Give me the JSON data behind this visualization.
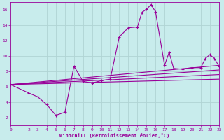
{
  "xlabel": "Windchill (Refroidissement éolien,°C)",
  "background_color": "#c8ecec",
  "line_color": "#990099",
  "grid_color": "#b0d4d4",
  "xlim": [
    0,
    23
  ],
  "ylim": [
    1,
    17
  ],
  "xticks": [
    0,
    2,
    3,
    4,
    5,
    6,
    7,
    8,
    9,
    10,
    11,
    12,
    13,
    14,
    15,
    16,
    17,
    18,
    19,
    20,
    21,
    22,
    23
  ],
  "yticks": [
    2,
    4,
    6,
    8,
    10,
    12,
    14,
    16
  ],
  "series": [
    [
      0,
      6.3
    ],
    [
      2,
      5.2
    ],
    [
      3,
      4.7
    ],
    [
      4,
      3.7
    ],
    [
      5,
      2.3
    ],
    [
      6,
      2.7
    ],
    [
      7,
      8.7
    ],
    [
      8,
      6.7
    ],
    [
      9,
      6.5
    ],
    [
      10,
      6.8
    ],
    [
      11,
      7.0
    ],
    [
      12,
      12.5
    ],
    [
      13,
      13.7
    ],
    [
      14,
      13.8
    ],
    [
      14.5,
      15.7
    ],
    [
      15,
      16.1
    ],
    [
      15.5,
      16.7
    ],
    [
      16,
      15.8
    ],
    [
      17,
      8.8
    ],
    [
      17.5,
      10.5
    ],
    [
      18,
      8.4
    ],
    [
      19,
      8.3
    ],
    [
      20,
      8.5
    ],
    [
      21,
      8.5
    ],
    [
      21.5,
      9.7
    ],
    [
      22,
      10.2
    ],
    [
      22.5,
      9.7
    ],
    [
      23,
      8.7
    ]
  ],
  "regression_lines": [
    {
      "x": [
        0,
        23
      ],
      "y": [
        6.3,
        7.0
      ]
    },
    {
      "x": [
        0,
        23
      ],
      "y": [
        6.3,
        7.6
      ]
    },
    {
      "x": [
        0,
        23
      ],
      "y": [
        6.3,
        8.2
      ]
    },
    {
      "x": [
        0,
        23
      ],
      "y": [
        6.3,
        8.8
      ]
    }
  ]
}
